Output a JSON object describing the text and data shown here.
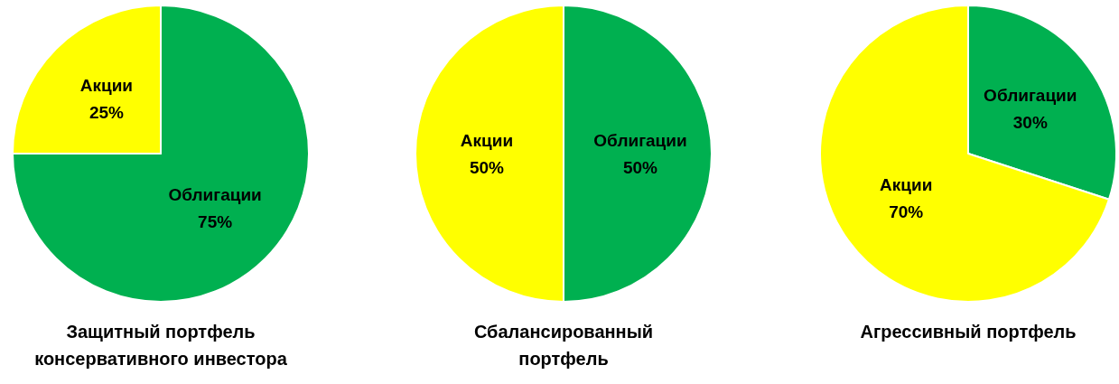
{
  "chart_data": [
    {
      "type": "pie",
      "title": "Защитный портфель консервативного инвестора",
      "categories": [
        "Облигации",
        "Акции"
      ],
      "values": [
        75,
        25
      ],
      "colors": [
        "#00b050",
        "#ffff00"
      ],
      "value_labels": [
        "75%",
        "25%"
      ]
    },
    {
      "type": "pie",
      "title": "Сбалансированный портфель",
      "categories": [
        "Облигации",
        "Акции"
      ],
      "values": [
        50,
        50
      ],
      "colors": [
        "#00b050",
        "#ffff00"
      ],
      "value_labels": [
        "50%",
        "50%"
      ]
    },
    {
      "type": "pie",
      "title": "Агрессивный портфель",
      "categories": [
        "Облигации",
        "Акции"
      ],
      "values": [
        30,
        70
      ],
      "colors": [
        "#00b050",
        "#ffff00"
      ],
      "value_labels": [
        "30%",
        "70%"
      ]
    }
  ]
}
